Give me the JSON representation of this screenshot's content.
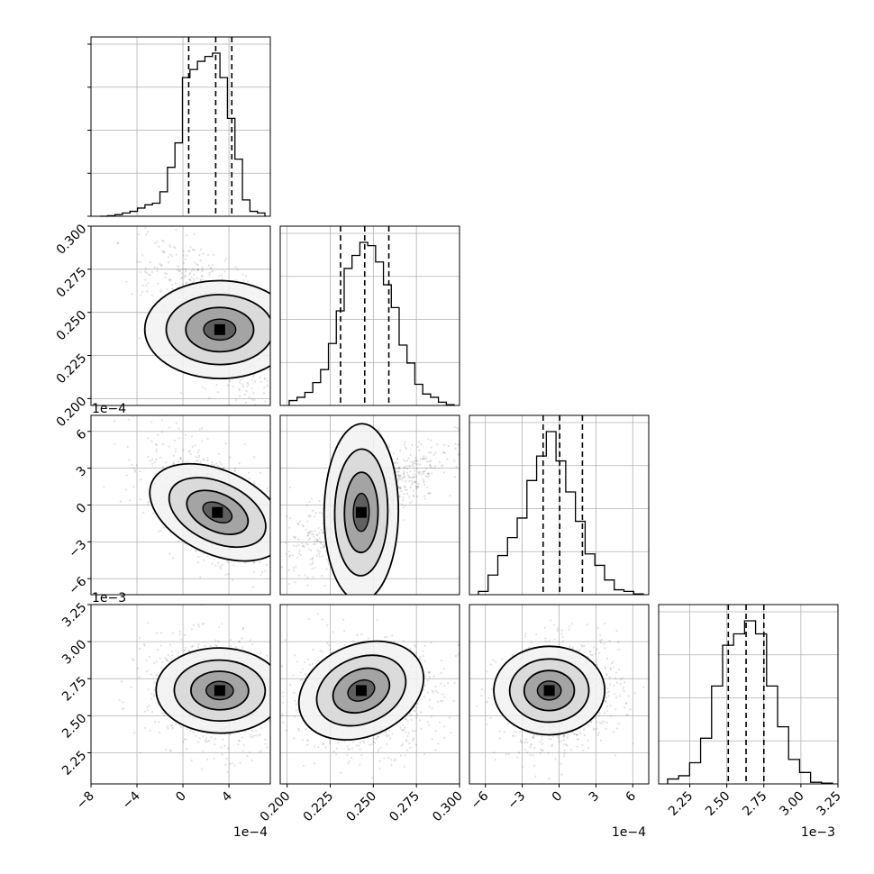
{
  "chart_data": {
    "type": "corner",
    "grid": true,
    "params": [
      {
        "id": "p1",
        "lim": [
          -8,
          7.6
        ],
        "ticks": [
          -8,
          -4,
          0,
          4
        ],
        "tick_labels": [
          "−8",
          "−4",
          "0",
          "4"
        ],
        "offset": "1e−4",
        "quantiles": [
          0.5,
          2.85,
          4.25
        ],
        "hist": [
          0,
          0.3,
          1,
          2,
          3,
          5,
          7,
          8,
          15,
          30,
          45,
          85,
          90,
          95,
          98,
          100,
          85,
          60,
          35,
          10,
          3,
          2
        ]
      },
      {
        "id": "p2",
        "lim": [
          0.196,
          0.3
        ],
        "ticks": [
          0.2,
          0.225,
          0.25,
          0.275,
          0.3
        ],
        "tick_labels": [
          "0.200",
          "0.225",
          "0.250",
          "0.275",
          "0.300"
        ],
        "offset": "",
        "quantiles": [
          0.231,
          0.245,
          0.259
        ],
        "hist": [
          3,
          5,
          8,
          14,
          22,
          38,
          58,
          84,
          92,
          100,
          98,
          88,
          74,
          60,
          37,
          26,
          13,
          7,
          5,
          2,
          0.5
        ]
      },
      {
        "id": "p3",
        "lim": [
          -7.3,
          7.3
        ],
        "ticks": [
          -6,
          -3,
          0,
          3,
          6
        ],
        "tick_labels": [
          "−6",
          "−3",
          "0",
          "3",
          "6"
        ],
        "offset": "1e−4",
        "quantiles": [
          -1.3,
          0.05,
          1.9
        ],
        "hist": [
          2,
          12,
          24,
          35,
          47,
          70,
          85,
          100,
          82,
          63,
          45,
          25,
          18,
          9,
          3,
          2,
          0.5
        ]
      },
      {
        "id": "p4",
        "lim": [
          2.04,
          3.25
        ],
        "ticks": [
          2.25,
          2.5,
          2.75,
          3.0,
          3.25
        ],
        "tick_labels": [
          "2.25",
          "2.50",
          "2.75",
          "3.00",
          "3.25"
        ],
        "offset": "1e−3",
        "quantiles": [
          2.51,
          2.63,
          2.75
        ],
        "hist": [
          3,
          5,
          13,
          28,
          60,
          85,
          92,
          100,
          92,
          60,
          35,
          15,
          7,
          1,
          0.5
        ]
      }
    ],
    "pairs": [
      {
        "row": 1,
        "col": 0,
        "peak": [
          3.2,
          0.24
        ]
      },
      {
        "row": 2,
        "col": 0,
        "peak": [
          3.0,
          -0.6
        ]
      },
      {
        "row": 2,
        "col": 1,
        "peak": [
          0.243,
          -0.6
        ]
      },
      {
        "row": 3,
        "col": 0,
        "peak": [
          3.2,
          2.67
        ]
      },
      {
        "row": 3,
        "col": 1,
        "peak": [
          0.243,
          2.67
        ]
      },
      {
        "row": 3,
        "col": 2,
        "peak": [
          -0.8,
          2.67
        ]
      }
    ]
  }
}
